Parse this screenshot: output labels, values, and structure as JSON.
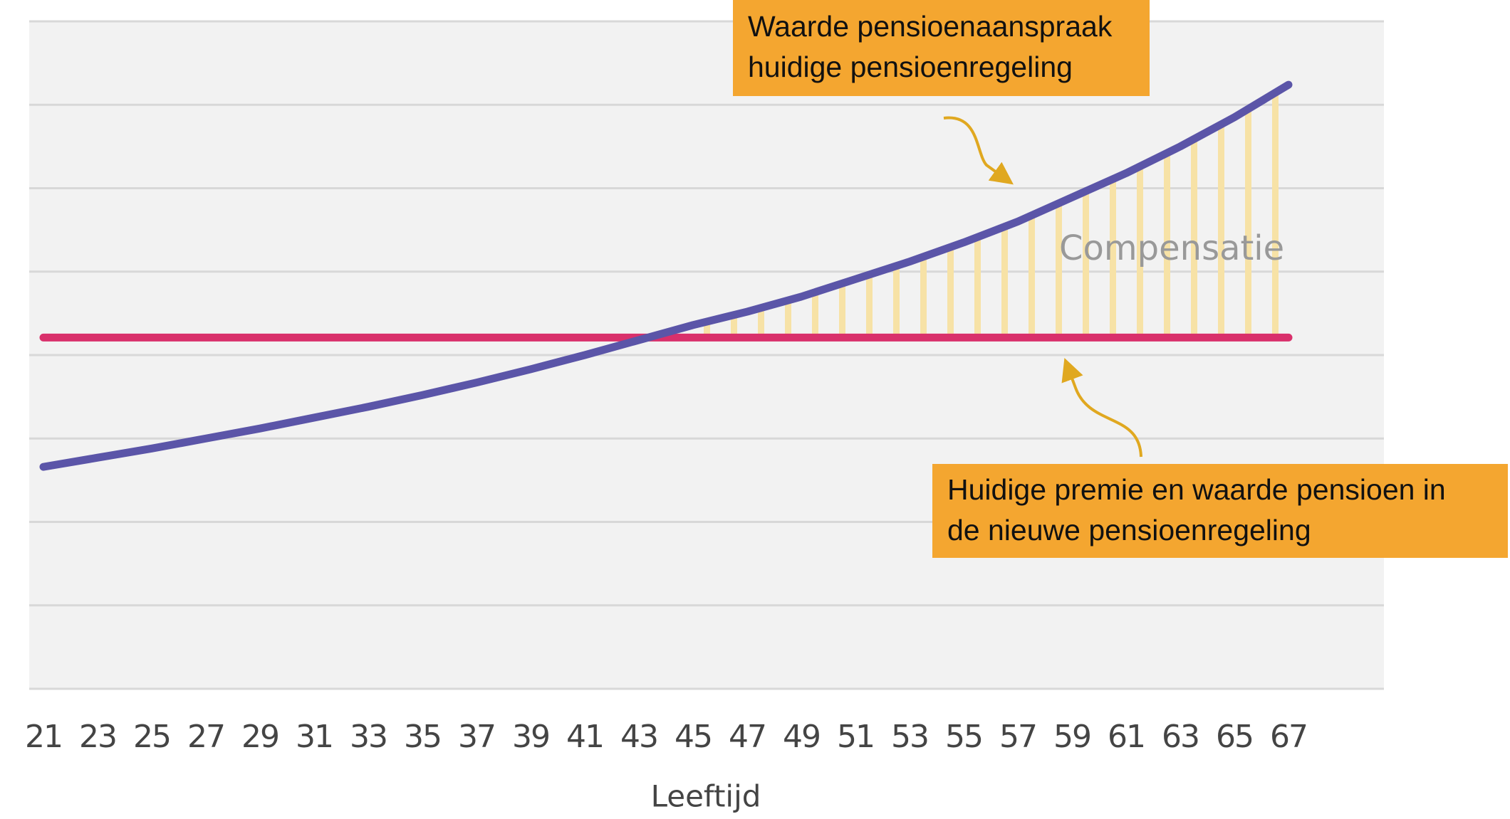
{
  "chart_data": {
    "type": "line",
    "x_label": "Leeftijd",
    "x": [
      21,
      23,
      25,
      27,
      29,
      31,
      33,
      35,
      37,
      39,
      41,
      43,
      45,
      47,
      49,
      51,
      53,
      55,
      57,
      59,
      61,
      63,
      65,
      67
    ],
    "xlim": [
      21,
      67
    ],
    "ylim": [
      0,
      8
    ],
    "yticks": [
      0,
      1,
      2,
      3,
      4,
      5,
      6,
      7,
      8
    ],
    "grid": true,
    "series": [
      {
        "color": "#5b55a8",
        "values": [
          2.66,
          2.77,
          2.88,
          3.0,
          3.12,
          3.25,
          3.38,
          3.52,
          3.67,
          3.83,
          4.0,
          4.18,
          4.36,
          4.52,
          4.7,
          4.91,
          5.12,
          5.35,
          5.6,
          5.89,
          6.18,
          6.5,
          6.85,
          7.24
        ]
      },
      {
        "color": "#d9306b",
        "values": [
          4.21,
          4.21,
          4.21,
          4.21,
          4.21,
          4.21,
          4.21,
          4.21,
          4.21,
          4.21,
          4.21,
          4.21,
          4.21,
          4.21,
          4.21,
          4.21,
          4.21,
          4.21,
          4.21,
          4.21,
          4.21,
          4.21,
          4.21,
          4.21
        ]
      }
    ],
    "area_label": "Compensatie",
    "area_color": "#f7e2a6",
    "annotations": [
      {
        "lines": [
          "Waarde pensioenaanspraak",
          "huidige pensioenregeling"
        ]
      },
      {
        "lines": [
          "Huidige premie en waarde pensioen in",
          "de nieuwe pensioenregeling"
        ]
      }
    ],
    "annotation_color": "#f4a630"
  }
}
